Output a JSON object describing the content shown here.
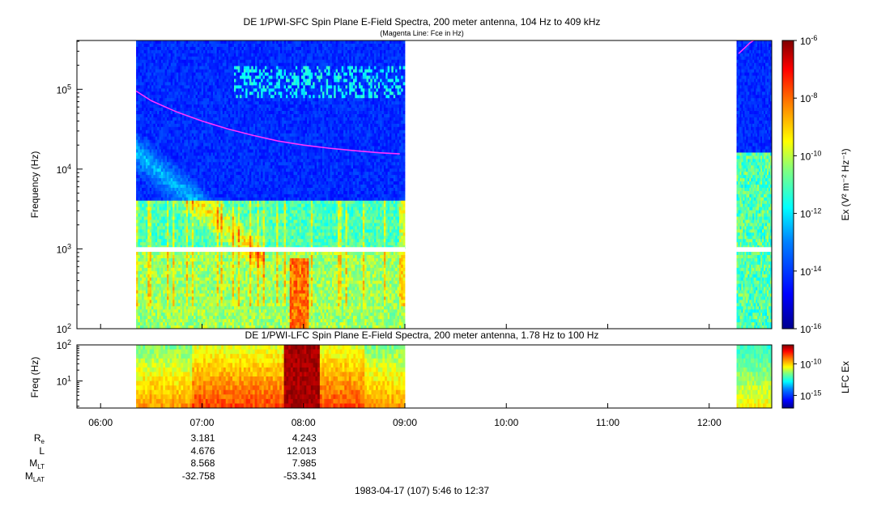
{
  "top_title": "DE 1/PWI-SFC  Spin Plane E-Field Spectra, 200 meter antenna, 104 Hz to 409 kHz",
  "top_subtitle": "(Magenta Line: Fce in Hz)",
  "bottom_title": "DE 1/PWI-LFC  Spin Plane E-Field Spectra, 200 meter antenna, 1.78 Hz to 100 Hz",
  "footer": "1983-04-17 (107) 5:46 to 12:37",
  "top_ylabel": "Frequency (Hz)",
  "bottom_ylabel": "Freq (Hz)",
  "top_colorbar_label": "Ex (V² m⁻² Hz⁻¹)",
  "bottom_colorbar_label": "LFC Ex",
  "ephemeris": {
    "labels": [
      {
        "main": "R",
        "sub": "e"
      },
      {
        "main": "L",
        "sub": ""
      },
      {
        "main": "M",
        "sub": "LT"
      },
      {
        "main": "M",
        "sub": "LAT"
      }
    ],
    "columns": [
      {
        "time": "07:00",
        "values": [
          "3.181",
          "4.676",
          "8.568",
          "-32.758"
        ]
      },
      {
        "time": "08:00",
        "values": [
          "4.243",
          "12.013",
          "7.985",
          "-53.341"
        ]
      }
    ]
  },
  "colors": {
    "magenta_line": "#ff33ff",
    "colormap": [
      "#00008f",
      "#0000ff",
      "#0080ff",
      "#00ffff",
      "#80ff80",
      "#ffff00",
      "#ff8000",
      "#ff0000",
      "#800000"
    ]
  },
  "chart_data": [
    {
      "type": "heatmap",
      "title": "DE 1/PWI-SFC  Spin Plane E-Field Spectra, 200 meter antenna, 104 Hz to 409 kHz",
      "subtitle": "(Magenta Line: Fce in Hz)",
      "ylabel": "Frequency (Hz)",
      "x_axis": {
        "unit": "UT hours",
        "range": [
          5.7667,
          12.6167
        ],
        "ticks": [
          "06:00",
          "07:00",
          "08:00",
          "09:00",
          "10:00",
          "11:00",
          "12:00"
        ]
      },
      "y_axis": {
        "scale": "log",
        "range": [
          100,
          409000
        ],
        "ticks": [
          "10^2",
          "10^3",
          "10^4",
          "10^5"
        ]
      },
      "data_intervals_ut_hours": [
        [
          6.35,
          9.0
        ],
        [
          12.27,
          12.6167
        ]
      ],
      "gap_band_hz": [
        950,
        1050
      ],
      "colorbar": {
        "label": "Ex (V² m⁻² Hz⁻¹)",
        "scale": "log",
        "range": [
          1e-16,
          1e-06
        ],
        "ticks": [
          "10^-6",
          "10^-8",
          "10^-10",
          "10^-12",
          "10^-14",
          "10^-16"
        ]
      },
      "series": [
        {
          "name": "Fce",
          "x": [
            6.35,
            6.5,
            6.75,
            7.0,
            7.25,
            7.5,
            7.75,
            8.0,
            8.25,
            8.5,
            8.75,
            8.95
          ],
          "y": [
            95000,
            72000,
            52000,
            40000,
            32000,
            26500,
            22500,
            20000,
            18300,
            17000,
            16000,
            15500
          ]
        },
        {
          "name": "Fce",
          "x": [
            12.29,
            12.35,
            12.4,
            12.45
          ],
          "y": [
            280000,
            330000,
            380000,
            420000
          ]
        }
      ]
    },
    {
      "type": "heatmap",
      "title": "DE 1/PWI-LFC  Spin Plane E-Field Spectra, 200 meter antenna, 1.78 Hz to 100 Hz",
      "ylabel": "Freq (Hz)",
      "x_axis": {
        "unit": "UT hours",
        "range": [
          5.7667,
          12.6167
        ],
        "ticks": [
          "06:00",
          "07:00",
          "08:00",
          "09:00",
          "10:00",
          "11:00",
          "12:00"
        ]
      },
      "y_axis": {
        "scale": "log",
        "range": [
          1.78,
          100
        ],
        "ticks": [
          "10^1",
          "10^2"
        ]
      },
      "data_intervals_ut_hours": [
        [
          6.35,
          9.0
        ],
        [
          12.27,
          12.6167
        ]
      ],
      "colorbar": {
        "label": "LFC Ex",
        "scale": "log",
        "range": [
          1e-17,
          1e-07
        ],
        "ticks": [
          "10^-10",
          "10^-15"
        ]
      }
    }
  ]
}
